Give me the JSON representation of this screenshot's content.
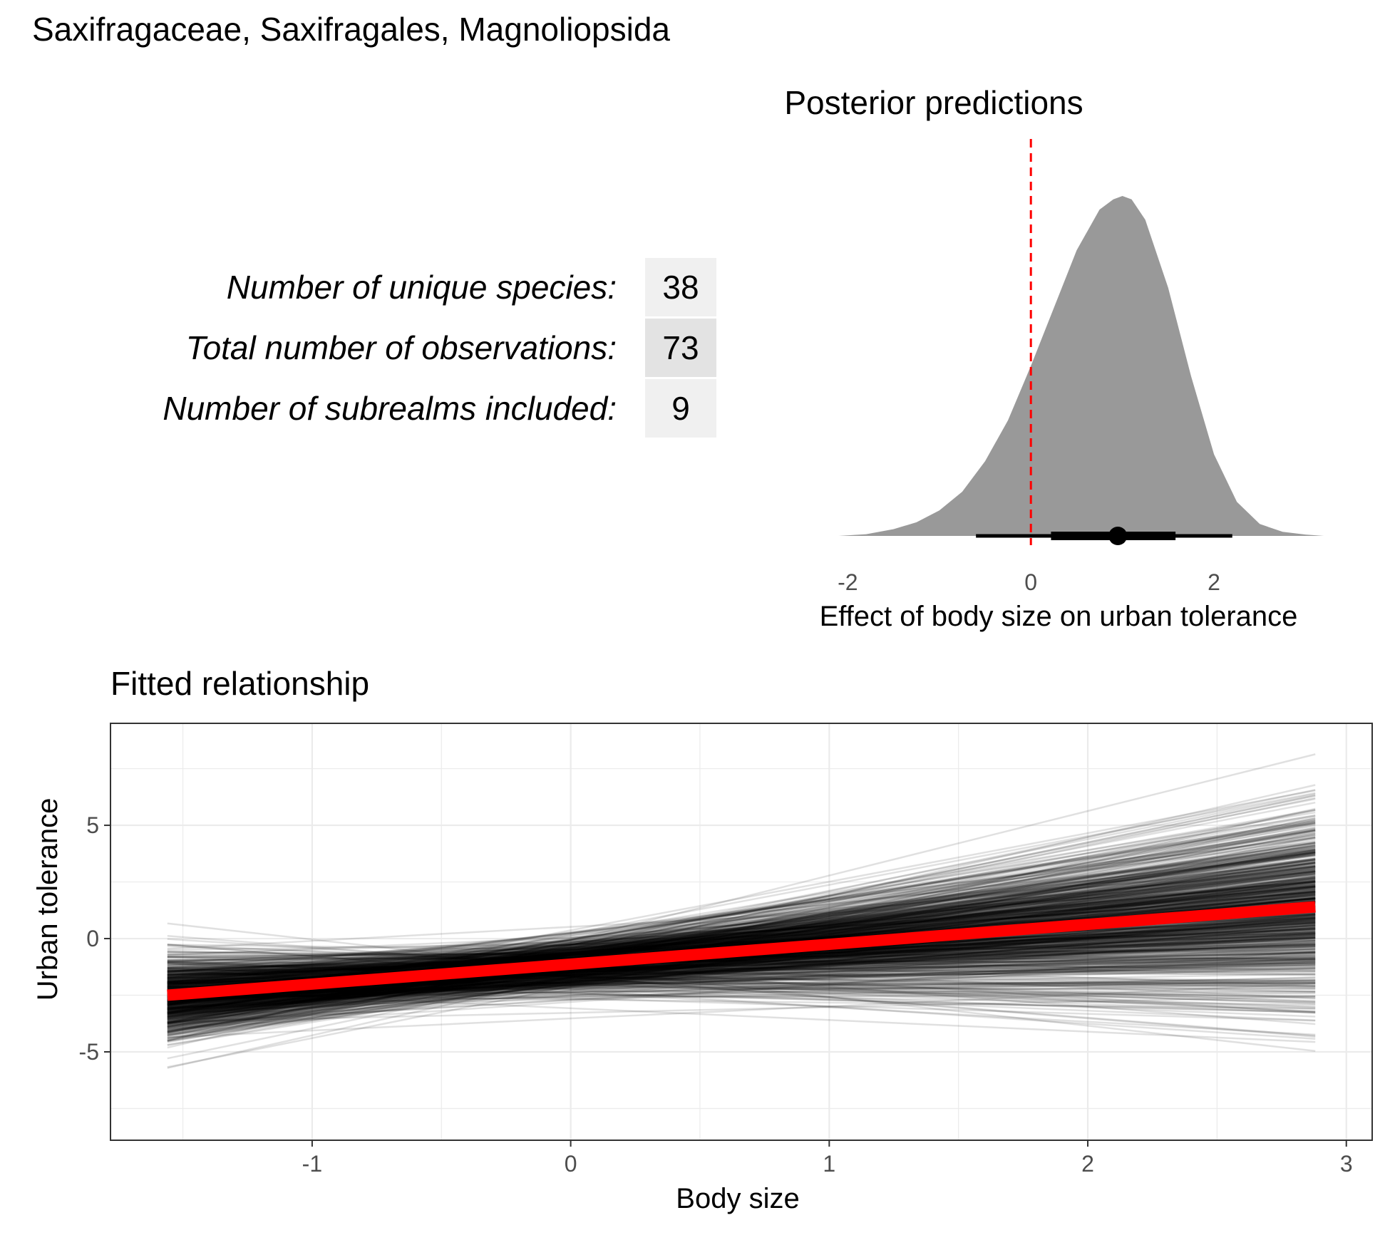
{
  "page_title": "Saxifragaceae, Saxifragales, Magnoliopsida",
  "stats_table": {
    "rows": [
      {
        "label": "Number of unique species:",
        "value": "38"
      },
      {
        "label": "Total number of observations:",
        "value": "73"
      },
      {
        "label": "Number of subrealms included:",
        "value": "9"
      }
    ],
    "cell_colors": [
      "#f0f0f0",
      "#e3e3e3",
      "#f0f0f0"
    ]
  },
  "chart_data": [
    {
      "type": "area",
      "title": "Posterior predictions",
      "xlabel": "Effect of body size on urban tolerance",
      "ylabel": "",
      "xlim": [
        -2.4,
        3.3
      ],
      "xticks": [
        -2,
        0,
        2
      ],
      "x_tick_labels": [
        "-2",
        "0",
        "2"
      ],
      "grid": false,
      "density": {
        "x": [
          -2.1,
          -1.8,
          -1.5,
          -1.25,
          -1.0,
          -0.75,
          -0.5,
          -0.25,
          0.0,
          0.25,
          0.5,
          0.75,
          0.9,
          1.0,
          1.1,
          1.25,
          1.5,
          1.75,
          2.0,
          2.25,
          2.5,
          2.75,
          3.0,
          3.2
        ],
        "y": [
          0.0,
          0.005,
          0.02,
          0.04,
          0.075,
          0.13,
          0.22,
          0.34,
          0.5,
          0.67,
          0.84,
          0.96,
          0.99,
          1.0,
          0.99,
          0.93,
          0.73,
          0.47,
          0.24,
          0.1,
          0.035,
          0.012,
          0.004,
          0.0
        ]
      },
      "point_estimate": 0.95,
      "interval_inner": [
        0.22,
        1.58
      ],
      "interval_outer": [
        -0.6,
        2.2
      ],
      "reference_line_x": 0,
      "colors": {
        "density": "#999999",
        "interval": "#000000",
        "reference_line": "#ff0000"
      }
    },
    {
      "type": "line",
      "title": "Fitted relationship",
      "xlabel": "Body size",
      "ylabel": "Urban tolerance",
      "xlim": [
        -1.78,
        3.1
      ],
      "ylim": [
        -8.9,
        9.5
      ],
      "xticks": [
        -1,
        0,
        1,
        2,
        3
      ],
      "x_tick_labels": [
        "-1",
        "0",
        "1",
        "2",
        "3"
      ],
      "yticks": [
        -5,
        0,
        5
      ],
      "y_tick_labels": [
        "-5",
        "0",
        "5"
      ],
      "grid": true,
      "x_range": [
        -1.56,
        2.88
      ],
      "posterior_draws": {
        "count": 800,
        "pivot_x": -0.35,
        "pivot_y": -1.5,
        "intercept_sd": 0.55,
        "slope_mean": 0.89,
        "slope_sd": 0.62,
        "opacity": 0.12
      },
      "mean_line": {
        "x": [
          -1.56,
          2.88
        ],
        "y": [
          -2.5,
          1.4
        ]
      },
      "colors": {
        "draws": "#000000",
        "mean_line": "#ff0000",
        "panel_border": "#333333",
        "grid": "#ebebeb"
      }
    }
  ]
}
